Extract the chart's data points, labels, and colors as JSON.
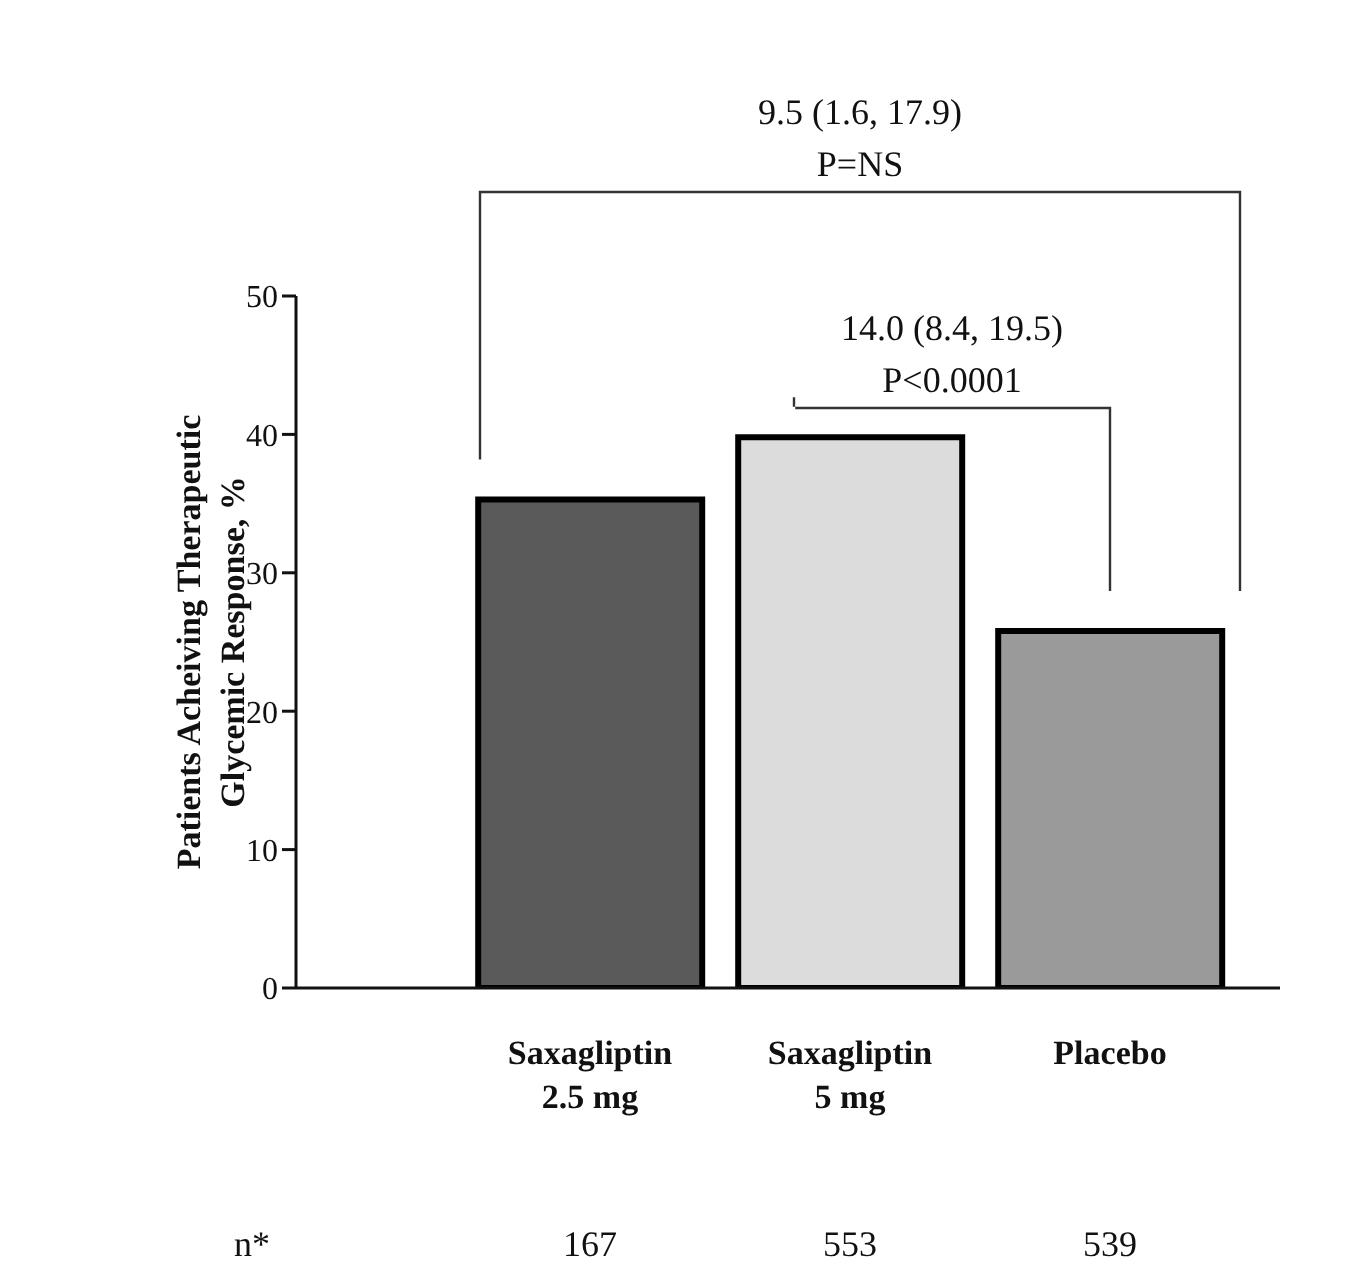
{
  "chart_data": {
    "type": "bar",
    "categories": [
      "Saxagliptin 2.5 mg",
      "Saxagliptin 5 mg",
      "Placebo"
    ],
    "values": [
      35.3,
      39.8,
      25.8
    ],
    "colors": [
      "#5a5a5a",
      "#dcdcdc",
      "#9a9a9a"
    ],
    "ylabel": "Patients Acheiving Therapeutic Glycemic Response, %",
    "ylim": [
      0,
      50
    ],
    "yticks": [
      0,
      10,
      20,
      30,
      40,
      50
    ],
    "grid": false,
    "legend": false,
    "annotations": [
      "9.5 (1.6, 17.9)",
      "P=NS",
      "14.0 (8.4, 19.5)",
      "P<0.0001",
      "n*",
      "167",
      "553",
      "539"
    ]
  }
}
